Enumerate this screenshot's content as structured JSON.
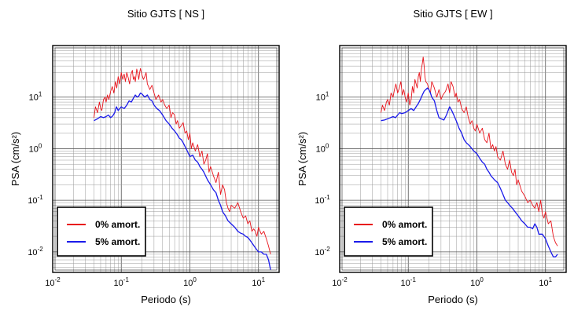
{
  "chart_data": [
    {
      "type": "line",
      "title": "Sitio GJTS [ NS ]",
      "xlabel": "Periodo (s)",
      "ylabel": "PSA (cm/s²)",
      "xscale": "log",
      "yscale": "log",
      "xlim": [
        0.01,
        20
      ],
      "ylim": [
        0.004,
        100
      ],
      "x_ticks": [
        {
          "value": 0.01,
          "base": "10",
          "exp": "-2"
        },
        {
          "value": 0.1,
          "base": "10",
          "exp": "-1"
        },
        {
          "value": 1,
          "base": "10",
          "exp": "0"
        },
        {
          "value": 10,
          "base": "10",
          "exp": "1"
        }
      ],
      "y_ticks": [
        {
          "value": 0.01,
          "base": "10",
          "exp": "-2"
        },
        {
          "value": 0.1,
          "base": "10",
          "exp": "-1"
        },
        {
          "value": 1,
          "base": "10",
          "exp": "0"
        },
        {
          "value": 10,
          "base": "10",
          "exp": "1"
        }
      ],
      "grid": true,
      "legend_position": "bottom-left",
      "series": [
        {
          "name": "0% amort.",
          "color": "#e8141c",
          "x": [
            0.04,
            0.042,
            0.045,
            0.048,
            0.05,
            0.052,
            0.055,
            0.058,
            0.06,
            0.063,
            0.066,
            0.07,
            0.074,
            0.078,
            0.082,
            0.086,
            0.09,
            0.095,
            0.1,
            0.105,
            0.11,
            0.115,
            0.12,
            0.126,
            0.132,
            0.138,
            0.145,
            0.15,
            0.155,
            0.16,
            0.168,
            0.175,
            0.18,
            0.185,
            0.19,
            0.2,
            0.21,
            0.22,
            0.23,
            0.24,
            0.25,
            0.26,
            0.28,
            0.3,
            0.32,
            0.35,
            0.38,
            0.4,
            0.43,
            0.46,
            0.5,
            0.53,
            0.56,
            0.6,
            0.63,
            0.66,
            0.7,
            0.75,
            0.8,
            0.85,
            0.9,
            0.95,
            1.0,
            1.05,
            1.1,
            1.2,
            1.3,
            1.4,
            1.5,
            1.6,
            1.7,
            1.8,
            1.9,
            2.0,
            2.2,
            2.4,
            2.6,
            2.8,
            3.0,
            3.2,
            3.4,
            3.6,
            3.8,
            4.0,
            4.5,
            5.0,
            5.5,
            6.0,
            6.5,
            7.0,
            7.5,
            8.0,
            8.5,
            9.0,
            9.5,
            10.0,
            11.0,
            12.0,
            13.0,
            14.0,
            15.0
          ],
          "y": [
            4.0,
            6.5,
            5.0,
            8.0,
            6.0,
            5.5,
            9.0,
            10.0,
            8.0,
            11.0,
            9.0,
            13.0,
            16.0,
            12.0,
            20.0,
            15.0,
            25.0,
            18.0,
            30.0,
            22.0,
            28.0,
            20.0,
            30.0,
            24.0,
            18.0,
            27.0,
            33.0,
            22.0,
            25.0,
            20.0,
            35.0,
            28.0,
            22.0,
            30.0,
            36.0,
            27.0,
            22.0,
            25.0,
            30.0,
            18.0,
            16.0,
            14.0,
            17.0,
            12.0,
            9.0,
            11.0,
            8.0,
            9.0,
            7.0,
            6.0,
            7.0,
            4.0,
            5.0,
            4.5,
            3.0,
            3.5,
            2.5,
            2.8,
            3.2,
            2.0,
            2.2,
            1.5,
            2.0,
            1.0,
            1.3,
            0.9,
            1.2,
            0.7,
            0.9,
            0.5,
            0.6,
            0.8,
            0.35,
            0.45,
            0.3,
            0.22,
            0.35,
            0.13,
            0.2,
            0.16,
            0.09,
            0.07,
            0.06,
            0.08,
            0.07,
            0.09,
            0.06,
            0.045,
            0.05,
            0.035,
            0.04,
            0.025,
            0.028,
            0.025,
            0.02,
            0.03,
            0.022,
            0.025,
            0.018,
            0.013,
            0.009
          ]
        },
        {
          "name": "5% amort.",
          "color": "#1a1aea",
          "x": [
            0.04,
            0.045,
            0.05,
            0.055,
            0.06,
            0.065,
            0.07,
            0.075,
            0.08,
            0.085,
            0.09,
            0.1,
            0.11,
            0.12,
            0.13,
            0.14,
            0.15,
            0.16,
            0.17,
            0.18,
            0.19,
            0.2,
            0.22,
            0.24,
            0.26,
            0.28,
            0.3,
            0.33,
            0.36,
            0.4,
            0.45,
            0.5,
            0.55,
            0.6,
            0.65,
            0.7,
            0.75,
            0.8,
            0.9,
            1.0,
            1.1,
            1.2,
            1.3,
            1.4,
            1.5,
            1.6,
            1.8,
            2.0,
            2.2,
            2.4,
            2.6,
            2.8,
            3.0,
            3.3,
            3.6,
            4.0,
            4.5,
            5.0,
            5.5,
            6.0,
            6.5,
            7.0,
            7.5,
            8.0,
            9.0,
            10.0,
            11.0,
            12.0,
            13.0,
            14.0,
            15.0
          ],
          "y": [
            3.5,
            3.8,
            4.2,
            4.0,
            4.2,
            4.5,
            4.0,
            4.3,
            5.0,
            6.5,
            5.5,
            6.5,
            6.0,
            7.0,
            8.5,
            8.0,
            9.5,
            11.0,
            10.0,
            10.5,
            12.0,
            11.5,
            10.0,
            11.0,
            9.0,
            8.5,
            7.0,
            6.0,
            5.5,
            4.5,
            3.5,
            3.0,
            2.5,
            2.2,
            1.9,
            1.6,
            1.5,
            1.3,
            0.95,
            0.7,
            0.75,
            0.6,
            0.55,
            0.45,
            0.4,
            0.35,
            0.25,
            0.2,
            0.16,
            0.14,
            0.1,
            0.08,
            0.06,
            0.05,
            0.04,
            0.035,
            0.03,
            0.025,
            0.023,
            0.022,
            0.02,
            0.019,
            0.017,
            0.015,
            0.012,
            0.01,
            0.01,
            0.009,
            0.009,
            0.007,
            0.0045
          ]
        }
      ]
    },
    {
      "type": "line",
      "title": "Sitio GJTS [ EW ]",
      "xlabel": "Periodo (s)",
      "ylabel": "PSA (cm/s²)",
      "xscale": "log",
      "yscale": "log",
      "xlim": [
        0.01,
        20
      ],
      "ylim": [
        0.004,
        100
      ],
      "x_ticks": [
        {
          "value": 0.01,
          "base": "10",
          "exp": "-2"
        },
        {
          "value": 0.1,
          "base": "10",
          "exp": "-1"
        },
        {
          "value": 1,
          "base": "10",
          "exp": "0"
        },
        {
          "value": 10,
          "base": "10",
          "exp": "1"
        }
      ],
      "y_ticks": [
        {
          "value": 0.01,
          "base": "10",
          "exp": "-2"
        },
        {
          "value": 0.1,
          "base": "10",
          "exp": "-1"
        },
        {
          "value": 1,
          "base": "10",
          "exp": "0"
        },
        {
          "value": 10,
          "base": "10",
          "exp": "1"
        }
      ],
      "grid": true,
      "legend_position": "bottom-left",
      "series": [
        {
          "name": "0% amort.",
          "color": "#e8141c",
          "x": [
            0.04,
            0.042,
            0.045,
            0.048,
            0.05,
            0.053,
            0.056,
            0.06,
            0.063,
            0.066,
            0.07,
            0.074,
            0.078,
            0.082,
            0.086,
            0.09,
            0.095,
            0.1,
            0.105,
            0.11,
            0.115,
            0.12,
            0.125,
            0.13,
            0.135,
            0.14,
            0.145,
            0.15,
            0.155,
            0.16,
            0.165,
            0.17,
            0.175,
            0.18,
            0.19,
            0.2,
            0.21,
            0.22,
            0.24,
            0.26,
            0.28,
            0.3,
            0.32,
            0.35,
            0.38,
            0.4,
            0.42,
            0.45,
            0.48,
            0.5,
            0.53,
            0.56,
            0.6,
            0.65,
            0.7,
            0.75,
            0.8,
            0.85,
            0.9,
            0.95,
            1.0,
            1.1,
            1.2,
            1.3,
            1.4,
            1.5,
            1.6,
            1.7,
            1.8,
            1.9,
            2.0,
            2.2,
            2.4,
            2.6,
            2.8,
            3.0,
            3.2,
            3.4,
            3.6,
            3.8,
            4.0,
            4.5,
            5.0,
            5.5,
            6.0,
            6.5,
            7.0,
            7.5,
            8.0,
            8.5,
            9.0,
            9.5,
            10.0,
            11.0,
            12.0,
            13.0,
            14.0,
            15.0
          ],
          "y": [
            5.0,
            7.0,
            5.5,
            8.0,
            9.0,
            7.0,
            12.0,
            10.0,
            14.0,
            18.0,
            12.0,
            15.0,
            20.0,
            11.0,
            14.0,
            10.0,
            8.0,
            12.0,
            7.0,
            9.0,
            16.0,
            12.0,
            22.0,
            18.0,
            15.0,
            25.0,
            30.0,
            20.0,
            35.0,
            45.0,
            60.0,
            40.0,
            25.0,
            20.0,
            18.0,
            14.0,
            12.0,
            20.0,
            15.0,
            10.0,
            14.0,
            9.0,
            11.0,
            13.0,
            18.0,
            12.0,
            20.0,
            16.0,
            10.0,
            12.0,
            8.0,
            9.0,
            6.0,
            5.0,
            6.5,
            4.0,
            3.0,
            3.5,
            2.5,
            2.2,
            3.0,
            2.0,
            2.5,
            1.5,
            1.3,
            2.0,
            1.0,
            1.2,
            0.9,
            1.1,
            0.7,
            0.6,
            0.9,
            0.5,
            0.4,
            0.6,
            0.35,
            0.3,
            0.4,
            0.2,
            0.25,
            0.15,
            0.12,
            0.09,
            0.1,
            0.08,
            0.07,
            0.09,
            0.06,
            0.1,
            0.055,
            0.045,
            0.06,
            0.035,
            0.04,
            0.02,
            0.015,
            0.013
          ]
        },
        {
          "name": "5% amort.",
          "color": "#1a1aea",
          "x": [
            0.04,
            0.045,
            0.05,
            0.055,
            0.06,
            0.065,
            0.07,
            0.075,
            0.08,
            0.09,
            0.1,
            0.11,
            0.12,
            0.13,
            0.14,
            0.15,
            0.16,
            0.17,
            0.18,
            0.19,
            0.2,
            0.21,
            0.22,
            0.24,
            0.26,
            0.28,
            0.3,
            0.33,
            0.36,
            0.4,
            0.43,
            0.46,
            0.5,
            0.55,
            0.6,
            0.65,
            0.7,
            0.75,
            0.8,
            0.9,
            1.0,
            1.1,
            1.2,
            1.3,
            1.4,
            1.5,
            1.6,
            1.8,
            2.0,
            2.2,
            2.4,
            2.6,
            2.8,
            3.0,
            3.3,
            3.6,
            4.0,
            4.5,
            5.0,
            5.5,
            6.0,
            6.5,
            7.0,
            7.5,
            8.0,
            9.0,
            10.0,
            11.0,
            12.0,
            13.0,
            14.0,
            15.0
          ],
          "y": [
            3.5,
            3.6,
            3.8,
            4.0,
            4.2,
            4.0,
            4.5,
            5.0,
            4.8,
            5.0,
            5.5,
            6.0,
            5.5,
            6.5,
            7.5,
            9.0,
            11.0,
            13.0,
            14.0,
            15.0,
            14.0,
            12.0,
            10.0,
            8.5,
            5.5,
            4.0,
            3.8,
            3.6,
            4.5,
            6.5,
            5.5,
            4.5,
            3.5,
            2.5,
            2.0,
            1.5,
            1.3,
            1.2,
            1.1,
            0.9,
            0.8,
            0.65,
            0.55,
            0.5,
            0.4,
            0.35,
            0.3,
            0.25,
            0.22,
            0.17,
            0.13,
            0.1,
            0.09,
            0.08,
            0.07,
            0.06,
            0.05,
            0.04,
            0.035,
            0.03,
            0.03,
            0.028,
            0.035,
            0.03,
            0.022,
            0.022,
            0.018,
            0.013,
            0.01,
            0.008,
            0.008,
            0.009
          ]
        }
      ]
    }
  ]
}
